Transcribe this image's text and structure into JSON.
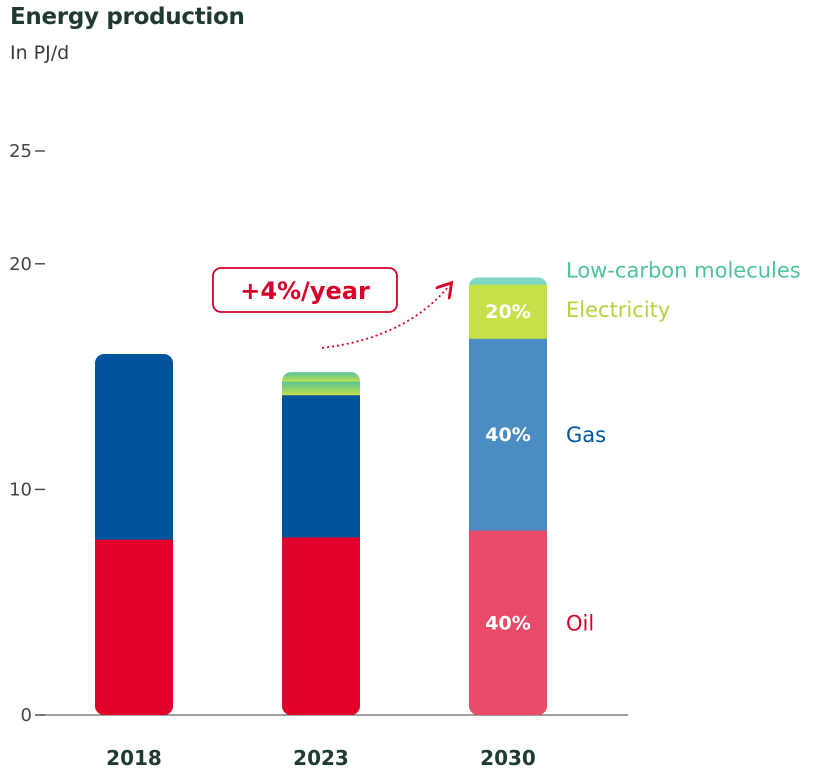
{
  "title": "Energy production",
  "subtitle": "In PJ/d",
  "chart_data": {
    "type": "bar",
    "stacked": true,
    "categories": [
      "2018",
      "2023",
      "2030"
    ],
    "ylim": [
      0,
      25
    ],
    "yticks": [
      0,
      10,
      20,
      25
    ],
    "series": [
      {
        "name": "Oil",
        "values": [
          7.8,
          7.9,
          8.2
        ],
        "color": "#e0002a",
        "color_2030": "#e84b68"
      },
      {
        "name": "Gas",
        "values": [
          8.2,
          6.3,
          8.5
        ],
        "color": "#00549b",
        "color_2030": "#4b8cc2"
      },
      {
        "name": "Electricity",
        "values": [
          0,
          0.6,
          2.4
        ],
        "color": "#c6e04a",
        "color_2030": "#c6e04a"
      },
      {
        "name": "Low-carbon molecules",
        "values": [
          0,
          0.4,
          0.3
        ],
        "color": "#4fc39c",
        "color_2030": "#7fd6c3"
      }
    ],
    "series_label_colors": [
      "#d6002a",
      "#00549b",
      "#b5d33a",
      "#4fc39c"
    ],
    "data_labels_2030": [
      "40%",
      "40%",
      "20%"
    ],
    "annotation": "+4%/year",
    "grid": false,
    "legend": "right of last bar"
  }
}
